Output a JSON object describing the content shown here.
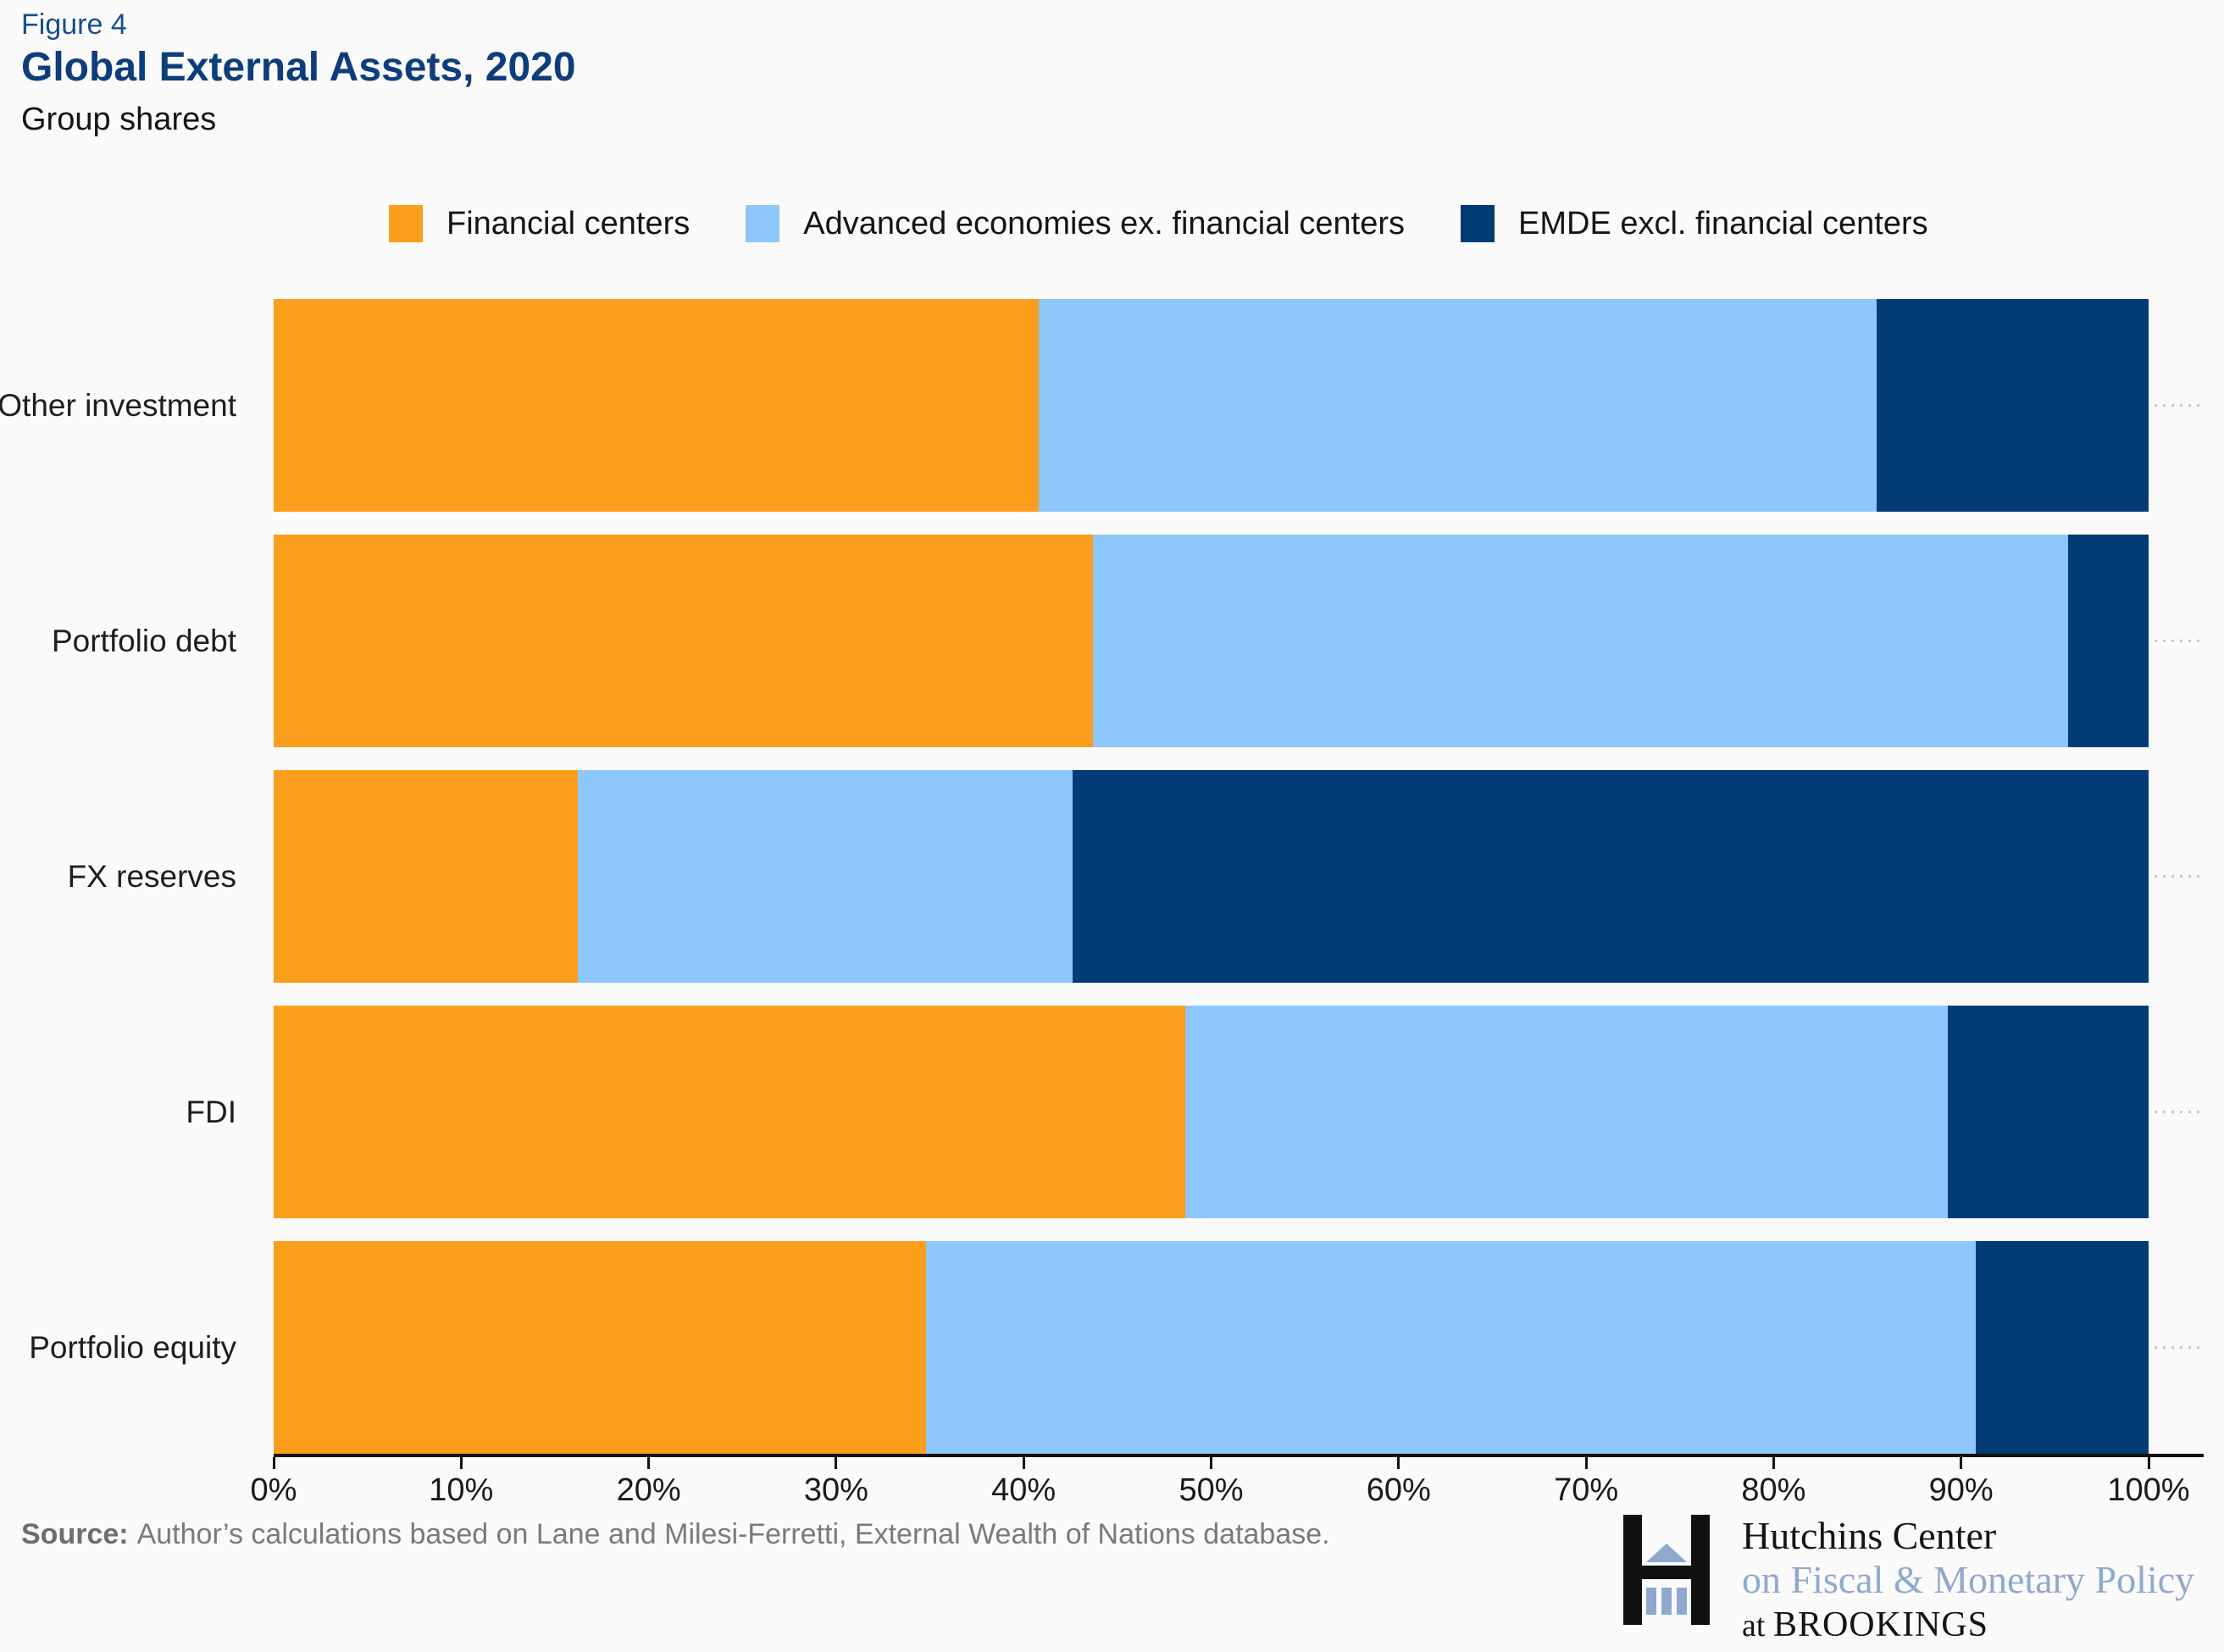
{
  "header": {
    "figure_label": "Figure 4",
    "title": "Global External Assets, 2020",
    "subtitle": "Group shares"
  },
  "footer": {
    "source_label": "Source:",
    "source_text": "Author’s calculations based on Lane and Milesi-Ferretti, External Wealth of Nations database.",
    "logo": {
      "line1": "Hutchins Center",
      "line2": "on Fiscal & Monetary Policy",
      "line3_prefix": "at ",
      "line3_name": "BROOKINGS"
    }
  },
  "colors": {
    "background": "#FAFAFA",
    "figure_label": "#174F8F",
    "title": "#0D3D7C",
    "axis": "#121212",
    "grid_dot": "#C9C9C9",
    "source_gray": "#7A7A7A",
    "logo_blue": "#8FA9CE",
    "orange": "#FB9E1B",
    "light_blue": "#8DC7FB",
    "navy": "#003B76"
  },
  "chart_data": {
    "type": "bar",
    "orientation": "horizontal",
    "stacked": true,
    "title": "Global External Assets, 2020",
    "subtitle": "Group shares",
    "categories": [
      "Other investment",
      "Portfolio debt",
      "FX reserves",
      "FDI",
      "Portfolio equity"
    ],
    "series": [
      {
        "name": "Financial centers",
        "color": "#FB9E1B",
        "values": [
          40.8,
          43.7,
          16.2,
          48.6,
          34.8
        ]
      },
      {
        "name": "Advanced economies ex. financial centers",
        "color": "#8DC7FB",
        "values": [
          44.7,
          52.0,
          26.4,
          40.7,
          56.0
        ]
      },
      {
        "name": "EMDE excl. financial centers",
        "color": "#003B76",
        "values": [
          14.5,
          4.3,
          57.4,
          10.7,
          9.2
        ]
      }
    ],
    "xlim": [
      0,
      100
    ],
    "xticks": [
      "0%",
      "10%",
      "20%",
      "30%",
      "40%",
      "50%",
      "60%",
      "70%",
      "80%",
      "90%",
      "100%"
    ],
    "legend_position": "top",
    "grid": "dotted horizontal lines at row centers, visible right of bars"
  }
}
